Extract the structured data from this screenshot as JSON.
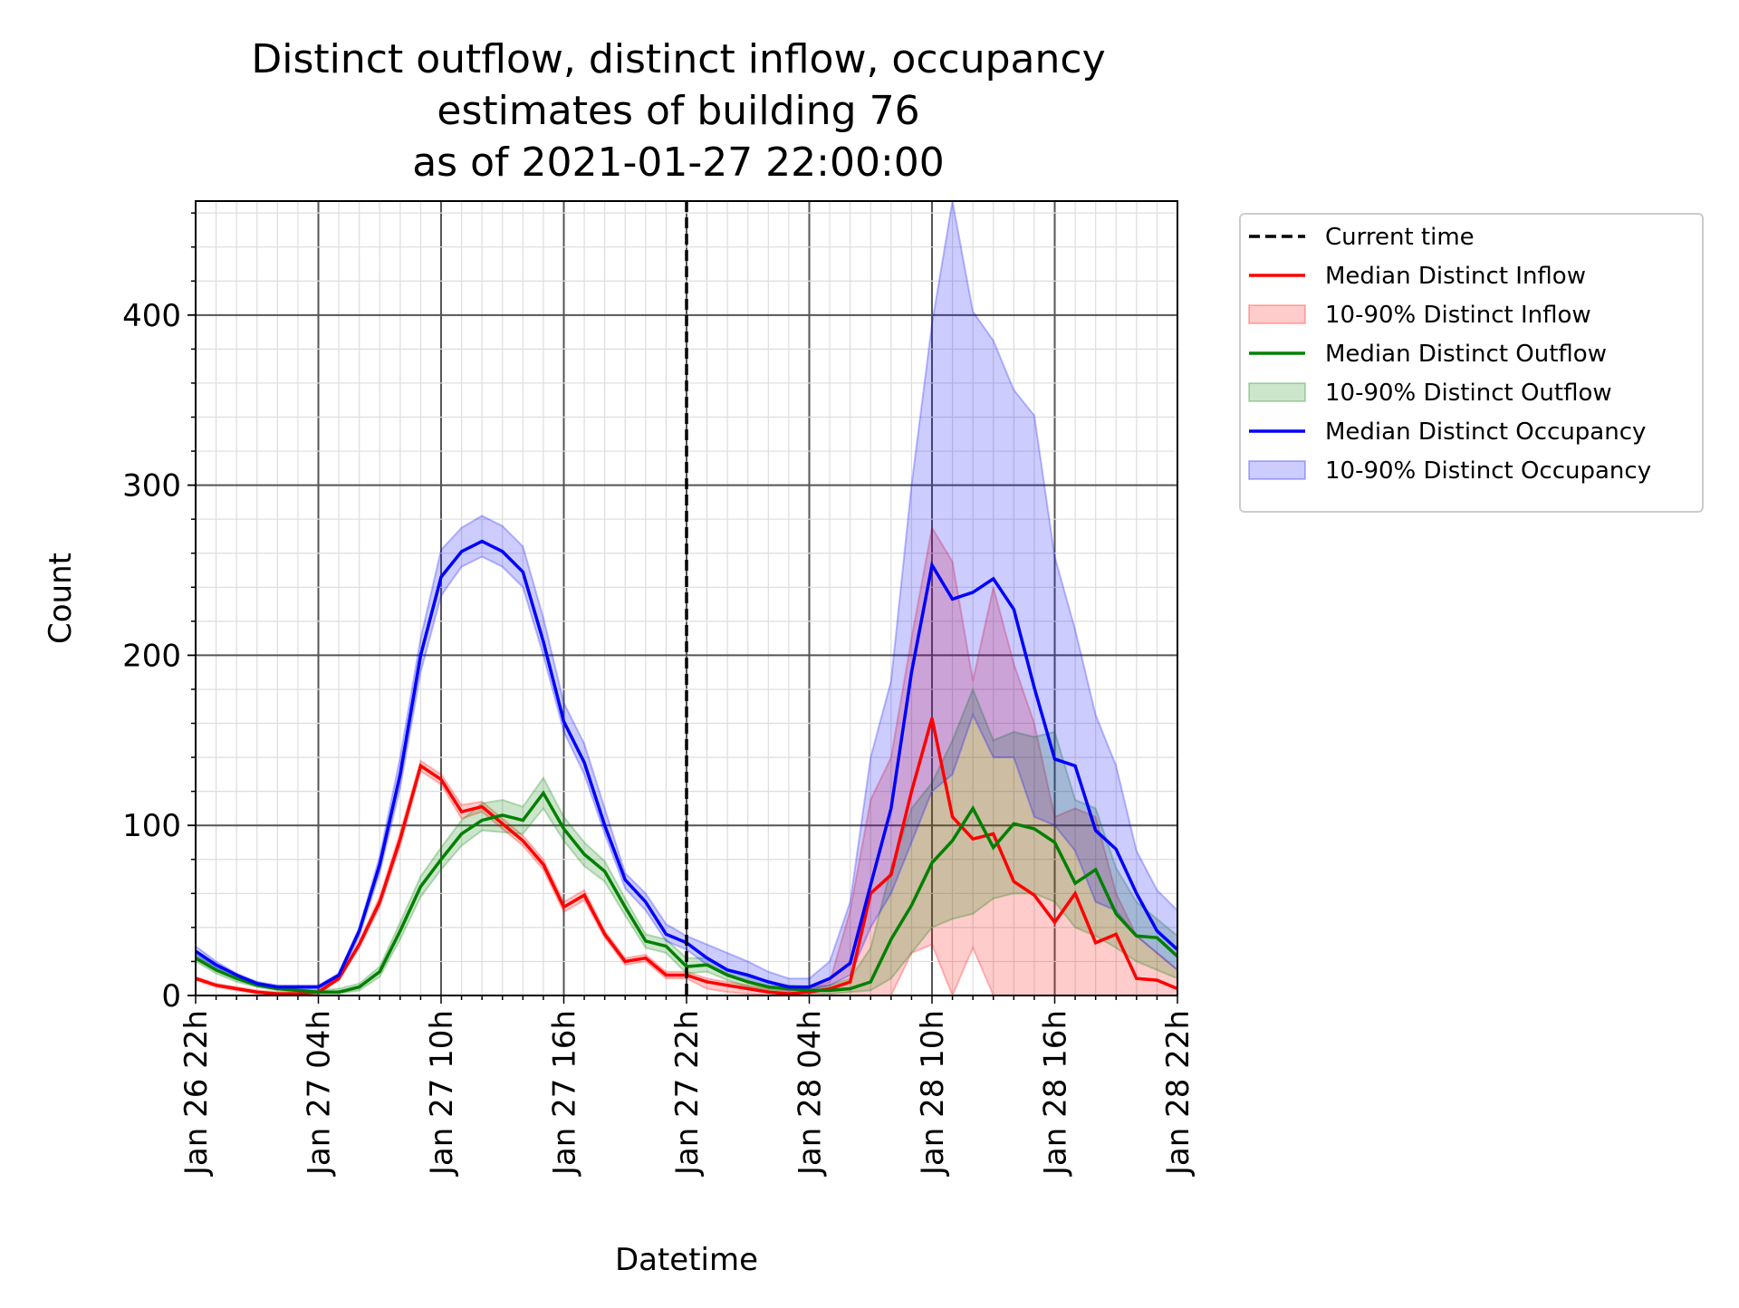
{
  "chart_data": {
    "type": "line",
    "title": [
      "Distinct outflow, distinct inflow, occupancy",
      "estimates of building 76",
      "as of 2021-01-27 22:00:00"
    ],
    "x_label": "Datetime",
    "y_label": "Count",
    "categories": [
      "Jan 26 22h",
      null,
      null,
      null,
      null,
      null,
      "Jan 27 04h",
      null,
      null,
      null,
      null,
      null,
      "Jan 27 10h",
      null,
      null,
      null,
      null,
      null,
      "Jan 27 16h",
      null,
      null,
      null,
      null,
      null,
      "Jan 27 22h",
      null,
      null,
      null,
      null,
      null,
      "Jan 28 04h",
      null,
      null,
      null,
      null,
      null,
      "Jan 28 10h",
      null,
      null,
      null,
      null,
      null,
      "Jan 28 16h",
      null,
      null,
      null,
      null,
      null,
      "Jan 28 22h"
    ],
    "ylim": [
      0,
      467
    ],
    "yticks": [
      0,
      100,
      200,
      300,
      400
    ],
    "minor_yticks": [
      20,
      40,
      60,
      80,
      120,
      140,
      160,
      180,
      220,
      240,
      260,
      280,
      320,
      340,
      360,
      380,
      420,
      440,
      460
    ],
    "grid": true,
    "legend": "outside-right",
    "vline": {
      "name": "Current time",
      "x": "Jan 27 22h",
      "color": "#000000"
    },
    "series": [
      {
        "name": "Median Distinct Inflow",
        "color": "#ff0000",
        "values": [
          10,
          6,
          4,
          2,
          1,
          1,
          2,
          10,
          30,
          55,
          92,
          135,
          127,
          108,
          111,
          101,
          91,
          77,
          52,
          59,
          36,
          20,
          22,
          12,
          12,
          8,
          6,
          4,
          2,
          1,
          2,
          4,
          8,
          60,
          71,
          120,
          163,
          105,
          92,
          95,
          67,
          59,
          43,
          60,
          31,
          36,
          10,
          9,
          4
        ]
      },
      {
        "name": "10-90% Distinct Inflow",
        "color": "#ff0000",
        "type": "band",
        "upper": [
          11,
          7,
          5,
          3,
          2,
          2,
          3,
          11,
          32,
          58,
          96,
          138,
          130,
          112,
          114,
          104,
          94,
          80,
          55,
          62,
          38,
          22,
          24,
          14,
          14,
          10,
          8,
          6,
          4,
          3,
          4,
          8,
          50,
          115,
          140,
          210,
          275,
          255,
          185,
          240,
          195,
          160,
          105,
          110,
          105,
          60,
          35,
          25,
          15
        ],
        "lower": [
          9,
          5,
          3,
          1,
          0,
          0,
          1,
          9,
          28,
          52,
          88,
          132,
          124,
          104,
          108,
          98,
          88,
          74,
          49,
          56,
          34,
          18,
          20,
          10,
          10,
          4,
          2,
          1,
          0,
          0,
          0,
          0,
          0,
          0,
          0,
          25,
          30,
          0,
          28,
          0,
          0,
          0,
          0,
          0,
          0,
          0,
          0,
          0,
          0
        ]
      },
      {
        "name": "Median Distinct Outflow",
        "color": "#008000",
        "values": [
          22,
          15,
          10,
          6,
          4,
          3,
          2,
          2,
          5,
          14,
          38,
          64,
          80,
          95,
          103,
          106,
          103,
          119,
          98,
          83,
          73,
          52,
          32,
          29,
          17,
          18,
          12,
          8,
          5,
          4,
          3,
          3,
          4,
          8,
          33,
          53,
          78,
          91,
          110,
          87,
          101,
          98,
          90,
          66,
          74,
          48,
          35,
          34,
          23
        ]
      },
      {
        "name": "10-90% Distinct Outflow",
        "color": "#008000",
        "type": "band",
        "upper": [
          24,
          17,
          12,
          8,
          5,
          4,
          3,
          4,
          7,
          17,
          43,
          70,
          87,
          103,
          113,
          115,
          111,
          128,
          105,
          90,
          79,
          57,
          36,
          33,
          22,
          22,
          15,
          11,
          8,
          6,
          5,
          6,
          10,
          28,
          75,
          110,
          125,
          150,
          180,
          150,
          155,
          152,
          155,
          115,
          110,
          75,
          55,
          45,
          35
        ],
        "lower": [
          20,
          13,
          8,
          5,
          3,
          2,
          1,
          1,
          3,
          11,
          33,
          58,
          74,
          88,
          97,
          96,
          95,
          110,
          91,
          76,
          67,
          47,
          28,
          25,
          13,
          14,
          9,
          5,
          3,
          2,
          1,
          1,
          2,
          3,
          10,
          25,
          40,
          45,
          48,
          57,
          60,
          60,
          55,
          40,
          35,
          28,
          20,
          15,
          10
        ]
      },
      {
        "name": "Median Distinct Occupancy",
        "color": "#0000ff",
        "values": [
          26,
          18,
          12,
          7,
          5,
          5,
          5,
          12,
          38,
          77,
          130,
          200,
          246,
          261,
          267,
          261,
          249,
          208,
          161,
          137,
          100,
          68,
          55,
          36,
          31,
          22,
          15,
          12,
          8,
          5,
          5,
          10,
          19,
          65,
          110,
          190,
          253,
          233,
          237,
          245,
          227,
          181,
          139,
          135,
          97,
          86,
          60,
          38,
          27
        ]
      },
      {
        "name": "10-90% Distinct Occupancy",
        "color": "#0000ff",
        "type": "band",
        "upper": [
          29,
          20,
          13,
          8,
          6,
          6,
          6,
          13,
          40,
          82,
          140,
          210,
          262,
          275,
          282,
          276,
          264,
          222,
          172,
          148,
          110,
          72,
          60,
          42,
          35,
          30,
          25,
          20,
          14,
          10,
          10,
          20,
          55,
          140,
          185,
          300,
          395,
          467,
          402,
          385,
          356,
          341,
          258,
          215,
          165,
          135,
          85,
          62,
          50
        ],
        "lower": [
          24,
          16,
          10,
          6,
          4,
          4,
          4,
          10,
          35,
          72,
          122,
          190,
          235,
          252,
          258,
          252,
          240,
          200,
          155,
          130,
          95,
          63,
          50,
          32,
          27,
          18,
          12,
          8,
          5,
          3,
          3,
          6,
          12,
          40,
          60,
          90,
          120,
          130,
          165,
          140,
          140,
          105,
          100,
          85,
          55,
          50,
          35,
          25,
          15
        ]
      }
    ]
  }
}
